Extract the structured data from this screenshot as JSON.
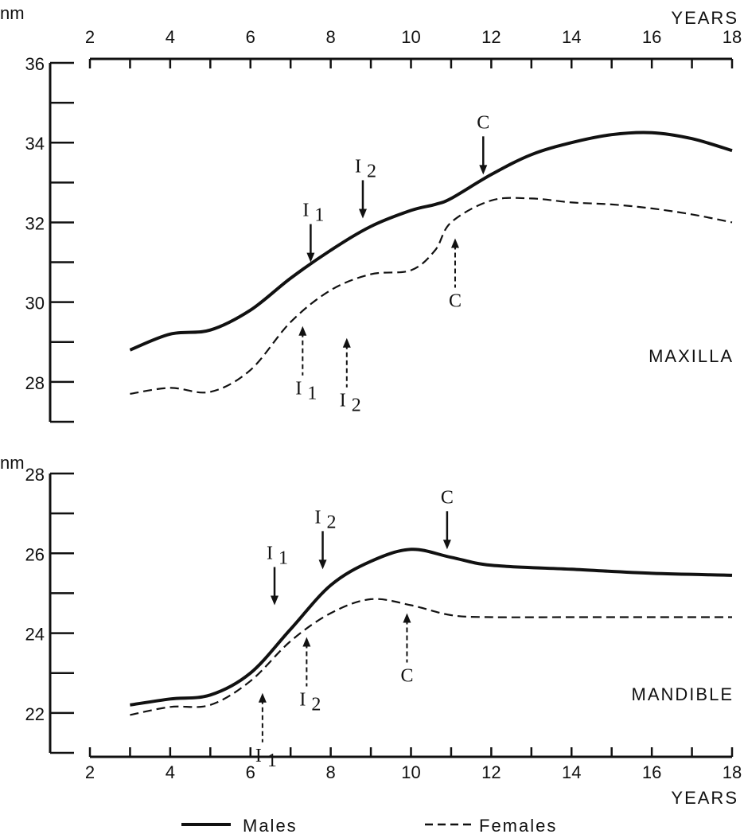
{
  "chart_data": [
    {
      "type": "line",
      "panel": "MAXILLA",
      "ylabel": "nm",
      "xlabel": "YEARS",
      "xlim": [
        2,
        18
      ],
      "ylim": [
        27,
        36
      ],
      "x_ticks": [
        2,
        4,
        6,
        8,
        10,
        12,
        14,
        16,
        18
      ],
      "y_ticks": [
        28,
        30,
        32,
        34,
        36
      ],
      "series": [
        {
          "name": "Males",
          "style": "solid",
          "points": [
            [
              3,
              28.8
            ],
            [
              4,
              29.2
            ],
            [
              5,
              29.3
            ],
            [
              6,
              29.8
            ],
            [
              7,
              30.6
            ],
            [
              8,
              31.3
            ],
            [
              9,
              31.9
            ],
            [
              10,
              32.3
            ],
            [
              10.6,
              32.45
            ],
            [
              11,
              32.6
            ],
            [
              12,
              33.2
            ],
            [
              13,
              33.7
            ],
            [
              14,
              34.0
            ],
            [
              15,
              34.2
            ],
            [
              16,
              34.25
            ],
            [
              17,
              34.1
            ],
            [
              18,
              33.8
            ]
          ]
        },
        {
          "name": "Females",
          "style": "dashed",
          "points": [
            [
              3,
              27.7
            ],
            [
              4,
              27.85
            ],
            [
              5,
              27.75
            ],
            [
              6,
              28.3
            ],
            [
              7,
              29.5
            ],
            [
              8,
              30.3
            ],
            [
              9,
              30.7
            ],
            [
              10,
              30.8
            ],
            [
              10.6,
              31.3
            ],
            [
              11,
              32.0
            ],
            [
              12,
              32.55
            ],
            [
              13,
              32.6
            ],
            [
              14,
              32.5
            ],
            [
              15,
              32.45
            ],
            [
              16,
              32.35
            ],
            [
              17,
              32.2
            ],
            [
              18,
              32.0
            ]
          ]
        }
      ],
      "annotations": [
        {
          "series": "Males",
          "sub": "1",
          "text": "I",
          "x": 7.5,
          "y": 30.8
        },
        {
          "series": "Males",
          "sub": "2",
          "text": "I",
          "x": 8.8,
          "y": 31.9
        },
        {
          "series": "Males",
          "sub": "",
          "text": "C",
          "x": 11.8,
          "y": 33.0
        },
        {
          "series": "Females",
          "sub": "1",
          "text": "I",
          "x": 7.3,
          "y": 29.6
        },
        {
          "series": "Females",
          "sub": "2",
          "text": "I",
          "x": 8.4,
          "y": 29.3
        },
        {
          "series": "Females",
          "sub": "",
          "text": "C",
          "x": 11.1,
          "y": 31.8
        }
      ]
    },
    {
      "type": "line",
      "panel": "MANDIBLE",
      "ylabel": "nm",
      "xlabel": "YEARS",
      "xlim": [
        2,
        18
      ],
      "ylim": [
        21,
        28
      ],
      "x_ticks": [
        2,
        4,
        6,
        8,
        10,
        12,
        14,
        16,
        18
      ],
      "y_ticks": [
        22,
        24,
        26,
        28
      ],
      "series": [
        {
          "name": "Males",
          "style": "solid",
          "points": [
            [
              3,
              22.2
            ],
            [
              4,
              22.35
            ],
            [
              5,
              22.45
            ],
            [
              6,
              23.0
            ],
            [
              7,
              24.1
            ],
            [
              8,
              25.2
            ],
            [
              9,
              25.8
            ],
            [
              10,
              26.1
            ],
            [
              11,
              25.9
            ],
            [
              12,
              25.7
            ],
            [
              14,
              25.6
            ],
            [
              16,
              25.5
            ],
            [
              18,
              25.45
            ]
          ]
        },
        {
          "name": "Females",
          "style": "dashed",
          "points": [
            [
              3,
              21.95
            ],
            [
              4,
              22.15
            ],
            [
              5,
              22.2
            ],
            [
              6,
              22.8
            ],
            [
              7,
              23.8
            ],
            [
              8,
              24.5
            ],
            [
              9,
              24.85
            ],
            [
              10,
              24.7
            ],
            [
              11,
              24.45
            ],
            [
              12,
              24.4
            ],
            [
              14,
              24.4
            ],
            [
              16,
              24.4
            ],
            [
              18,
              24.4
            ]
          ]
        }
      ],
      "annotations": [
        {
          "series": "Males",
          "sub": "1",
          "text": "I",
          "x": 6.6,
          "y": 24.5
        },
        {
          "series": "Males",
          "sub": "2",
          "text": "I",
          "x": 7.8,
          "y": 25.4
        },
        {
          "series": "Males",
          "sub": "",
          "text": "C",
          "x": 10.9,
          "y": 25.9
        },
        {
          "series": "Females",
          "sub": "1",
          "text": "I",
          "x": 6.3,
          "y": 22.7
        },
        {
          "series": "Females",
          "sub": "2",
          "text": "I",
          "x": 7.4,
          "y": 24.1
        },
        {
          "series": "Females",
          "sub": "",
          "text": "C",
          "x": 9.9,
          "y": 24.7
        }
      ]
    }
  ],
  "legend": {
    "placement": "bottom",
    "males_label": "Males",
    "females_label": "Females"
  }
}
